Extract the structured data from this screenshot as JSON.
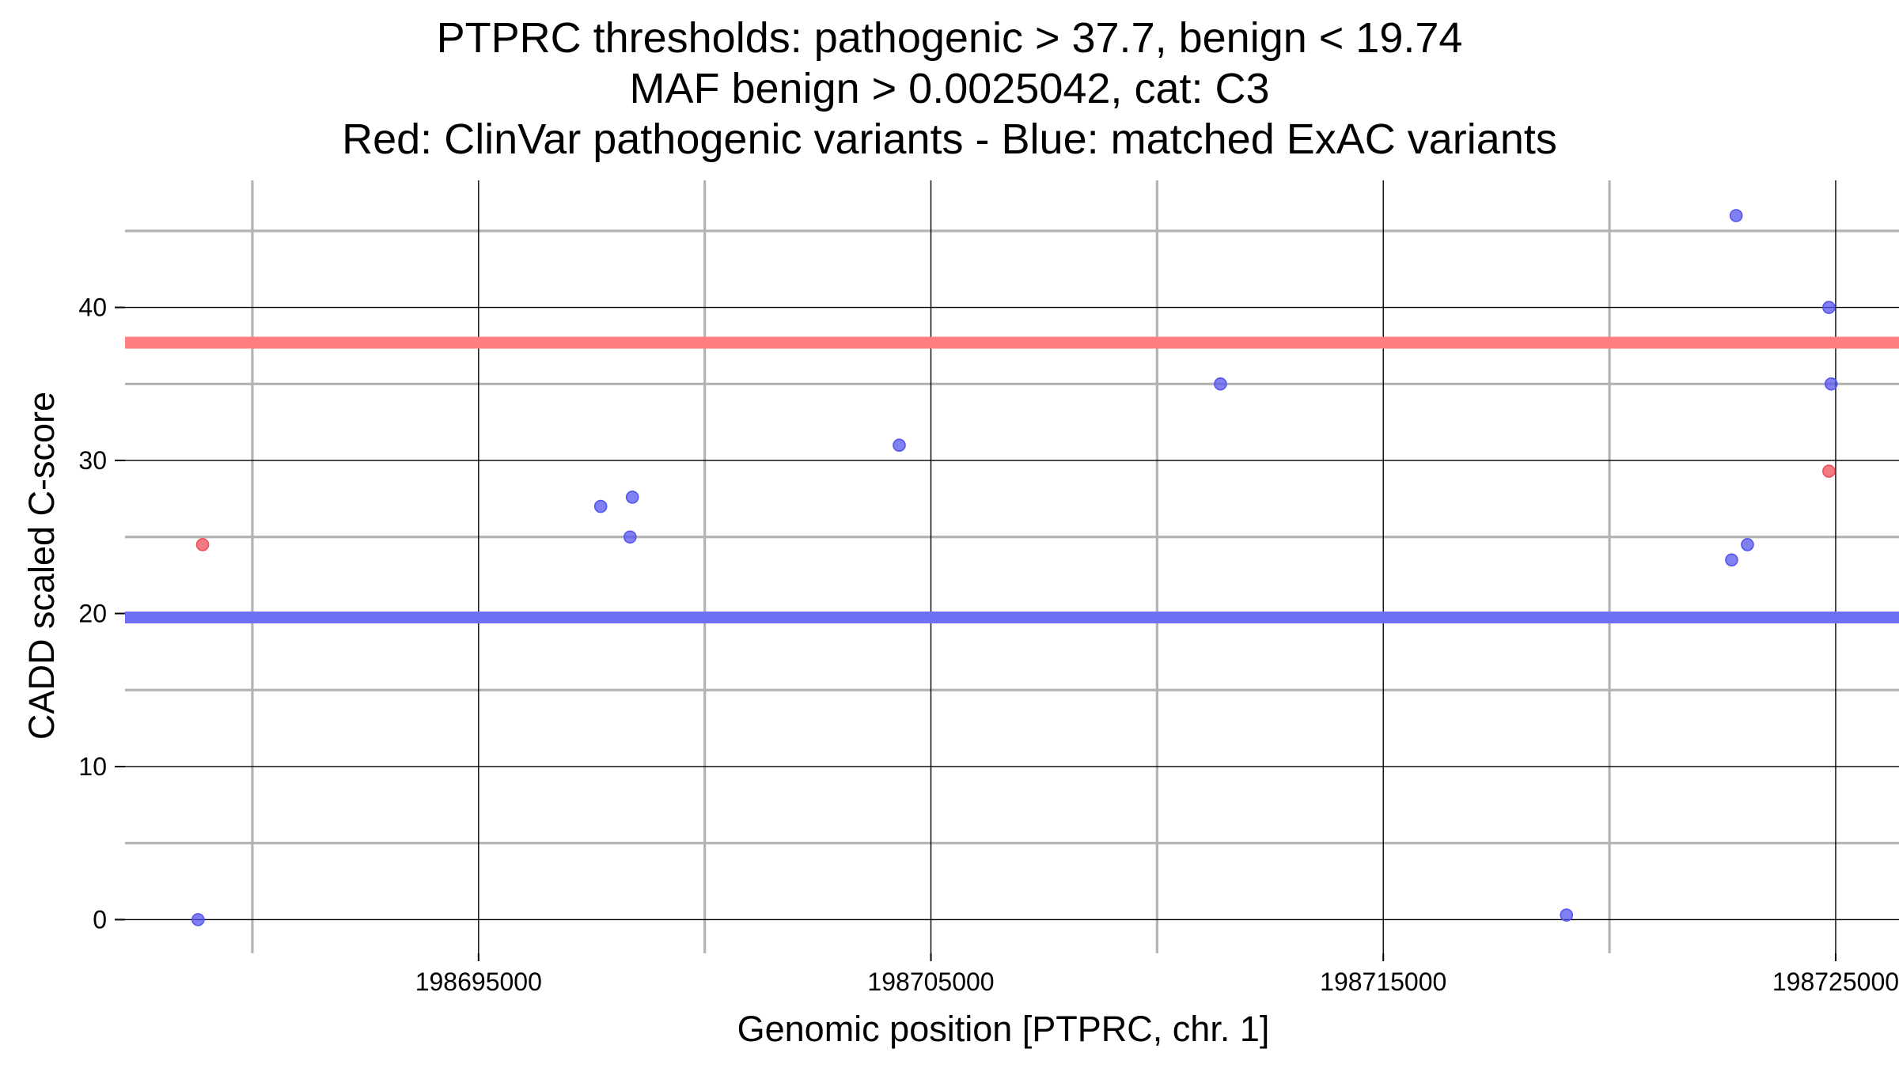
{
  "chart_data": {
    "type": "scatter",
    "title_lines": [
      "PTPRC thresholds: pathogenic > 37.7, benign < 19.74",
      "MAF benign > 0.0025042, cat: C3",
      "Red: ClinVar pathogenic variants - Blue: matched ExAC variants"
    ],
    "xlabel": "Genomic position [PTPRC, chr. 1]",
    "ylabel": "CADD scaled C-score",
    "xlim": [
      198687150,
      198726400
    ],
    "ylim": [
      -2.2,
      48.3
    ],
    "x_ticks": [
      198695000,
      198705000,
      198715000,
      198725000
    ],
    "x_tick_labels": [
      "198695000",
      "198705000",
      "198715000",
      "198725000"
    ],
    "y_ticks": [
      0,
      10,
      20,
      30,
      40
    ],
    "y_tick_labels": [
      "0",
      "10",
      "20",
      "30",
      "40"
    ],
    "grid": true,
    "thresholds": [
      {
        "label": "pathogenic",
        "value": 37.7,
        "color": "#ff7f7f"
      },
      {
        "label": "benign",
        "value": 19.74,
        "color": "#6f6ff5"
      }
    ],
    "series": [
      {
        "color": "#ee4f5a",
        "points": [
          {
            "x": 198688900,
            "y": 24.5
          },
          {
            "x": 198724850,
            "y": 29.3
          }
        ]
      },
      {
        "color": "#5555ee",
        "points": [
          {
            "x": 198688800,
            "y": 0.0
          },
          {
            "x": 198697700,
            "y": 27.0
          },
          {
            "x": 198698400,
            "y": 27.6
          },
          {
            "x": 198698350,
            "y": 25.0
          },
          {
            "x": 198704300,
            "y": 31.0
          },
          {
            "x": 198711400,
            "y": 35.0
          },
          {
            "x": 198719050,
            "y": 0.3
          },
          {
            "x": 198722800,
            "y": 46.0
          },
          {
            "x": 198722700,
            "y": 23.5
          },
          {
            "x": 198723050,
            "y": 24.5
          },
          {
            "x": 198724850,
            "y": 40.0
          },
          {
            "x": 198724900,
            "y": 35.0
          }
        ]
      }
    ]
  }
}
